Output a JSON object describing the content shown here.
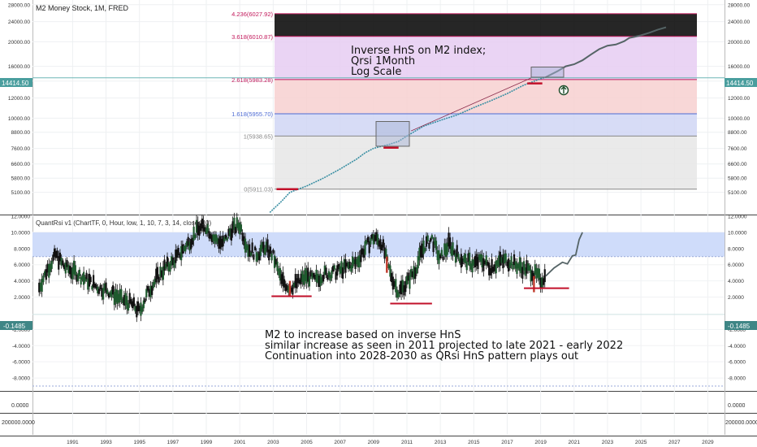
{
  "header": {
    "title": "M2 Money Stock, 1M, FRED",
    "indicator_title": "QuantRsi v1 (ChartTF, 0, Hour, low, 1, 10, 7, 3, 14, close, 10)"
  },
  "annotations": {
    "top_lines": [
      "Inverse HnS on M2 index;",
      "Qrsi 1Month",
      "Log Scale"
    ],
    "bottom_lines": [
      "M2 to increase based on inverse HnS",
      "similar increase as seen in 2011 projected to late 2021 - early 2022",
      "Continuation into 2028-2030 as QRsi HnS pattern plays out"
    ]
  },
  "price_badge": "14414.50",
  "rsi_badge": "-0.1485",
  "extra_pane_labels": {
    "p3": "0.0000",
    "p4": "200000.0000"
  },
  "colors": {
    "line": "#3a8fa3",
    "projection": "#556466",
    "red_mark": "#c2102a",
    "price_badge": "#4a9e9e",
    "rsi_badge": "#3f8686",
    "fib_band_top": "#e6ccf2",
    "fib_band_2": "#f7d0d0",
    "fib_band_3": "#d0d6f5",
    "fib_band_4": "#e6e6e6",
    "rsi_zone": "#cfdcfa"
  },
  "chart_data": [
    {
      "type": "line",
      "title": "M2 Money Stock, 1M, FRED",
      "scale": "log",
      "ylim": [
        4200,
        29000
      ],
      "yticks": [
        "5100.00",
        "5800.00",
        "6600.00",
        "7600.00",
        "8800.00",
        "10000.00",
        "12000.00",
        "14000.00",
        "16000.00",
        "20000.00",
        "24000.00",
        "28000.00"
      ],
      "xticks": [
        "1991",
        "1993",
        "1995",
        "1997",
        "1999",
        "2001",
        "2003",
        "2005",
        "2007",
        "2009",
        "2011",
        "2013",
        "2015",
        "2017",
        "2019",
        "2021",
        "2023",
        "2025",
        "2027",
        "2029"
      ],
      "series": [
        {
          "values_x": [
            2002.8,
            2003.5,
            2004.0,
            2004.5,
            2005.0,
            2006.0,
            2007.0,
            2008.0,
            2008.5,
            2009.0,
            2009.5,
            2010.0,
            2010.5,
            2011.0,
            2011.5,
            2012.0,
            2013.0,
            2014.0,
            2015.0,
            2016.0,
            2017.0,
            2018.0,
            2019.0,
            2019.3
          ],
          "values_y": [
            4250,
            4700,
            5100,
            5250,
            5400,
            5800,
            6300,
            6900,
            7300,
            7600,
            7750,
            7900,
            8100,
            8500,
            8900,
            9300,
            9800,
            10300,
            11000,
            11700,
            12500,
            13500,
            14300,
            14500
          ]
        },
        {
          "values_x": [
            2019.3,
            2020.0,
            2020.5,
            2021.0,
            2021.5,
            2022.0,
            2022.5,
            2023.0,
            2023.5,
            2024.0,
            2024.3,
            2024.6,
            2025.0,
            2025.5,
            2026.0,
            2026.5
          ],
          "values_y": [
            14500,
            15300,
            16000,
            16300,
            16900,
            17800,
            18700,
            19300,
            19500,
            20100,
            20700,
            20900,
            21200,
            21700,
            22300,
            22800
          ]
        }
      ],
      "fib_levels": [
        {
          "label": "0(5911.03)",
          "value": 5250
        },
        {
          "label": "1(5938.65)",
          "value": 8500
        },
        {
          "label": "1.618(5955.70)",
          "value": 10400
        },
        {
          "label": "2.618(5983.28)",
          "value": 14200
        },
        {
          "label": "3.618(6010.87)",
          "value": 21000
        },
        {
          "label": "4.236(6027.92)",
          "value": 25800
        }
      ],
      "grid": true
    },
    {
      "type": "bar",
      "title": "QuantRsi v1 (ChartTF, 0, Hour, low, 1, 10, 7, 3, 14, close, 10)",
      "ylim": [
        -9.5,
        12
      ],
      "yticks": [
        "-8.0000",
        "-6.0000",
        "-4.0000",
        "-2.0000",
        "2.0000",
        "4.0000",
        "6.0000",
        "8.0000",
        "10.0000",
        "12.0000"
      ],
      "upper_band": [
        7.0,
        10.0
      ],
      "values_x": [
        1989.0,
        1989.5,
        1990.0,
        1990.5,
        1991.0,
        1991.5,
        1992.0,
        1992.5,
        1993.0,
        1993.5,
        1994.0,
        1994.5,
        1995.0,
        1995.5,
        1996.0,
        1996.5,
        1997.0,
        1997.5,
        1998.0,
        1998.5,
        1999.0,
        1999.5,
        2000.0,
        2000.5,
        2001.0,
        2001.5,
        2002.0,
        2002.5,
        2003.0,
        2003.5,
        2004.0,
        2004.5,
        2005.0,
        2005.5,
        2006.0,
        2006.5,
        2007.0,
        2007.5,
        2008.0,
        2008.5,
        2009.0,
        2009.5,
        2010.0,
        2010.5,
        2011.0,
        2011.5,
        2012.0,
        2012.5,
        2013.0,
        2013.5,
        2014.0,
        2014.5,
        2015.0,
        2015.5,
        2016.0,
        2016.5,
        2017.0,
        2017.5,
        2018.0,
        2018.5,
        2019.0,
        2019.3
      ],
      "values_y": [
        3.2,
        5.5,
        7.2,
        5.8,
        5.2,
        4.6,
        3.9,
        3.2,
        2.9,
        2.3,
        1.6,
        1.2,
        0.2,
        2.6,
        4.2,
        5.6,
        6.3,
        7.6,
        8.9,
        10.4,
        10.7,
        9.2,
        8.6,
        10.3,
        10.9,
        8.0,
        7.3,
        8.1,
        7.1,
        4.0,
        3.2,
        3.8,
        4.6,
        4.1,
        4.8,
        5.0,
        5.3,
        5.8,
        6.3,
        8.1,
        9.4,
        8.7,
        5.0,
        2.6,
        3.8,
        5.4,
        8.2,
        9.2,
        6.6,
        8.6,
        7.2,
        6.4,
        6.1,
        6.6,
        5.7,
        6.3,
        6.6,
        6.0,
        5.5,
        5.2,
        4.1,
        4.6
      ],
      "projection_x": [
        2019.3,
        2019.8,
        2020.3,
        2020.6,
        2020.9,
        2021.1,
        2021.3,
        2021.5
      ],
      "projection_y": [
        4.6,
        5.6,
        6.3,
        6.1,
        7.1,
        7.2,
        9.1,
        10.0
      ],
      "grid": true
    }
  ]
}
